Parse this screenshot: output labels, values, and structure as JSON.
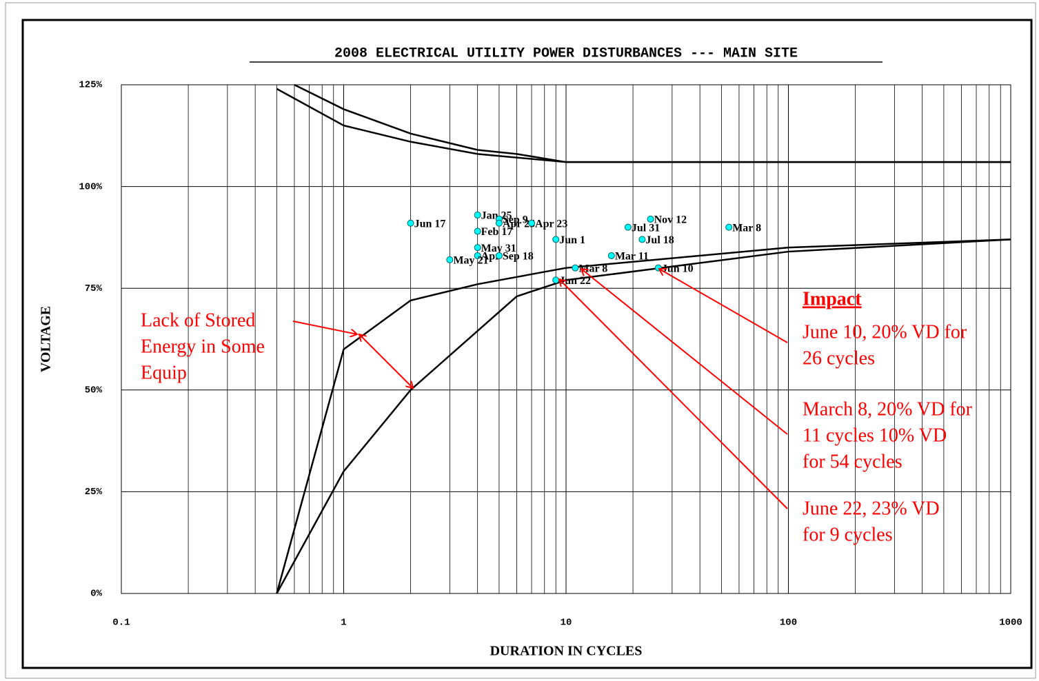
{
  "chart_data": {
    "type": "scatter",
    "title": "2008 ELECTRICAL UTILITY POWER DISTURBANCES --- MAIN SITE",
    "x_label": "DURATION IN CYCLES",
    "y_label": "VOLTAGE",
    "x_scale": "log",
    "xlim": [
      0.1,
      1000
    ],
    "xticks": [
      0.1,
      1,
      10,
      100,
      1000
    ],
    "ylim": [
      0,
      125
    ],
    "yticks": [
      {
        "value": 0,
        "label": "0%"
      },
      {
        "value": 25,
        "label": "25%"
      },
      {
        "value": 50,
        "label": "50%"
      },
      {
        "value": 75,
        "label": "75%"
      },
      {
        "value": 100,
        "label": "100%"
      },
      {
        "value": 125,
        "label": "125%"
      }
    ],
    "grid": true,
    "color": "#00ffff",
    "labels": [
      "Jun 17",
      "Jan 25",
      "Sep 9",
      "Apr 25",
      "Apr 23",
      "Feb 17",
      "May 31",
      "Apr",
      "Sep 18",
      "May 21",
      "Jun 1",
      "Jun 22",
      "Mar 8",
      "Mar 11",
      "Jul 31",
      "Nov 12",
      "Jul 18",
      "Jun 10",
      "Mar 8"
    ],
    "x": [
      2,
      4,
      5,
      5,
      7,
      4,
      4,
      4,
      5,
      3,
      9,
      9,
      11,
      16,
      19,
      24,
      22,
      26,
      54
    ],
    "values": [
      91,
      93,
      92,
      91,
      91,
      89,
      85,
      83,
      83,
      82,
      87,
      77,
      80,
      83,
      90,
      92,
      87,
      80,
      90
    ],
    "curve_color": "#000000",
    "curves": [
      {
        "x": [
          0.5,
          1,
          2,
          4,
          10,
          1000
        ],
        "values": [
          124,
          115,
          111,
          108,
          106,
          106
        ]
      },
      {
        "x": [
          0.6,
          1,
          2,
          4,
          6,
          10,
          1000
        ],
        "values": [
          125,
          119,
          113,
          109,
          108,
          106,
          106
        ]
      },
      {
        "x": [
          0.5,
          1,
          2,
          4,
          10,
          100,
          1000
        ],
        "values": [
          0,
          60,
          72,
          76,
          80,
          85,
          87
        ]
      },
      {
        "x": [
          0.5,
          1,
          2,
          6,
          10,
          100,
          1000
        ],
        "values": [
          0,
          30,
          50,
          73,
          77,
          84,
          87
        ]
      }
    ],
    "annotations": [
      {
        "lines": [
          "Lack of Stored",
          "Energy in Some",
          "Equip"
        ]
      },
      {
        "title": "Impact"
      },
      {
        "lines": [
          "June 10, 20% VD for",
          "26 cycles"
        ]
      },
      {
        "lines": [
          "March 8, 20% VD for",
          "11 cycles 10% VD",
          "for 54 cycles"
        ]
      },
      {
        "lines": [
          "June 22, 23% VD",
          "for 9 cycles"
        ]
      }
    ]
  }
}
